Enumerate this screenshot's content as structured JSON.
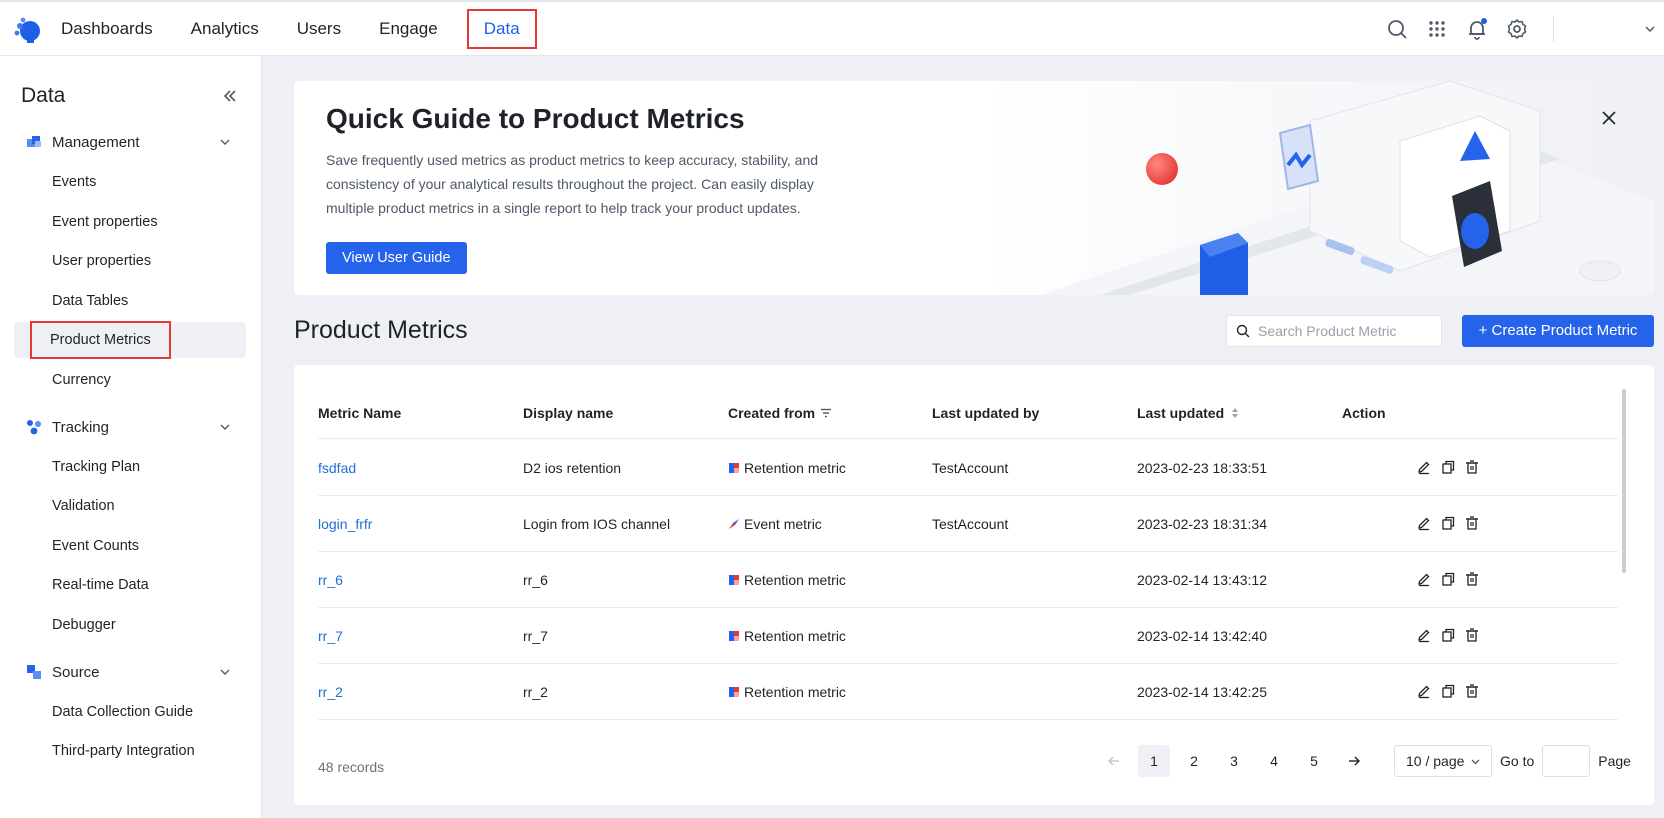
{
  "nav": {
    "items": [
      {
        "label": "Dashboards",
        "active": false
      },
      {
        "label": "Analytics",
        "active": false
      },
      {
        "label": "Users",
        "active": false
      },
      {
        "label": "Engage",
        "active": false
      },
      {
        "label": "Data",
        "active": true
      }
    ],
    "icons": [
      "search-icon",
      "apps-grid-icon",
      "bell-icon",
      "gear-icon"
    ],
    "accent_color": "#1f5fe6"
  },
  "sidebar": {
    "title": "Data",
    "groups": [
      {
        "label": "Management",
        "icon": "cube-stack-icon",
        "items": [
          "Events",
          "Event properties",
          "User properties",
          "Data Tables",
          "Product Metrics",
          "Currency"
        ]
      },
      {
        "label": "Tracking",
        "icon": "tracking-nodes-icon",
        "items": [
          "Tracking Plan",
          "Validation",
          "Event Counts",
          "Real-time Data",
          "Debugger"
        ]
      },
      {
        "label": "Source",
        "icon": "source-blocks-icon",
        "items": [
          "Data Collection Guide",
          "Third-party Integration"
        ]
      }
    ],
    "active_item": "Product Metrics"
  },
  "guide": {
    "title": "Quick Guide to Product Metrics",
    "description": "Save frequently used metrics as product metrics to keep accuracy, stability, and consistency of your analytical results throughout the project. Can easily display multiple product metrics in a single report to help track your product updates.",
    "button_label": "View User Guide"
  },
  "metrics": {
    "title": "Product Metrics",
    "search_placeholder": "Search Product Metric",
    "create_label": "+ Create Product Metric",
    "columns": [
      "Metric Name",
      "Display name",
      "Created from",
      "Last updated by",
      "Last updated",
      "Action"
    ],
    "rows": [
      {
        "name": "fsdfad",
        "display": "D2 ios retention",
        "source": "Retention metric",
        "source_icon": "retention-metric-icon",
        "updated_by": "TestAccount",
        "updated": "2023-02-23 18:33:51"
      },
      {
        "name": "login_frfr",
        "display": "Login from IOS channel",
        "source": "Event metric",
        "source_icon": "event-metric-icon",
        "updated_by": "TestAccount",
        "updated": "2023-02-23 18:31:34"
      },
      {
        "name": "rr_6",
        "display": "rr_6",
        "source": "Retention metric",
        "source_icon": "retention-metric-icon",
        "updated_by": "",
        "updated": "2023-02-14 13:43:12"
      },
      {
        "name": "rr_7",
        "display": "rr_7",
        "source": "Retention metric",
        "source_icon": "retention-metric-icon",
        "updated_by": "",
        "updated": "2023-02-14 13:42:40"
      },
      {
        "name": "rr_2",
        "display": "rr_2",
        "source": "Retention metric",
        "source_icon": "retention-metric-icon",
        "updated_by": "",
        "updated": "2023-02-14 13:42:25"
      }
    ],
    "records": "48 records",
    "pages": [
      "1",
      "2",
      "3",
      "4",
      "5"
    ],
    "current_page": "1",
    "page_size": "10 / page",
    "goto_label": "Go to",
    "page_label": "Page"
  }
}
